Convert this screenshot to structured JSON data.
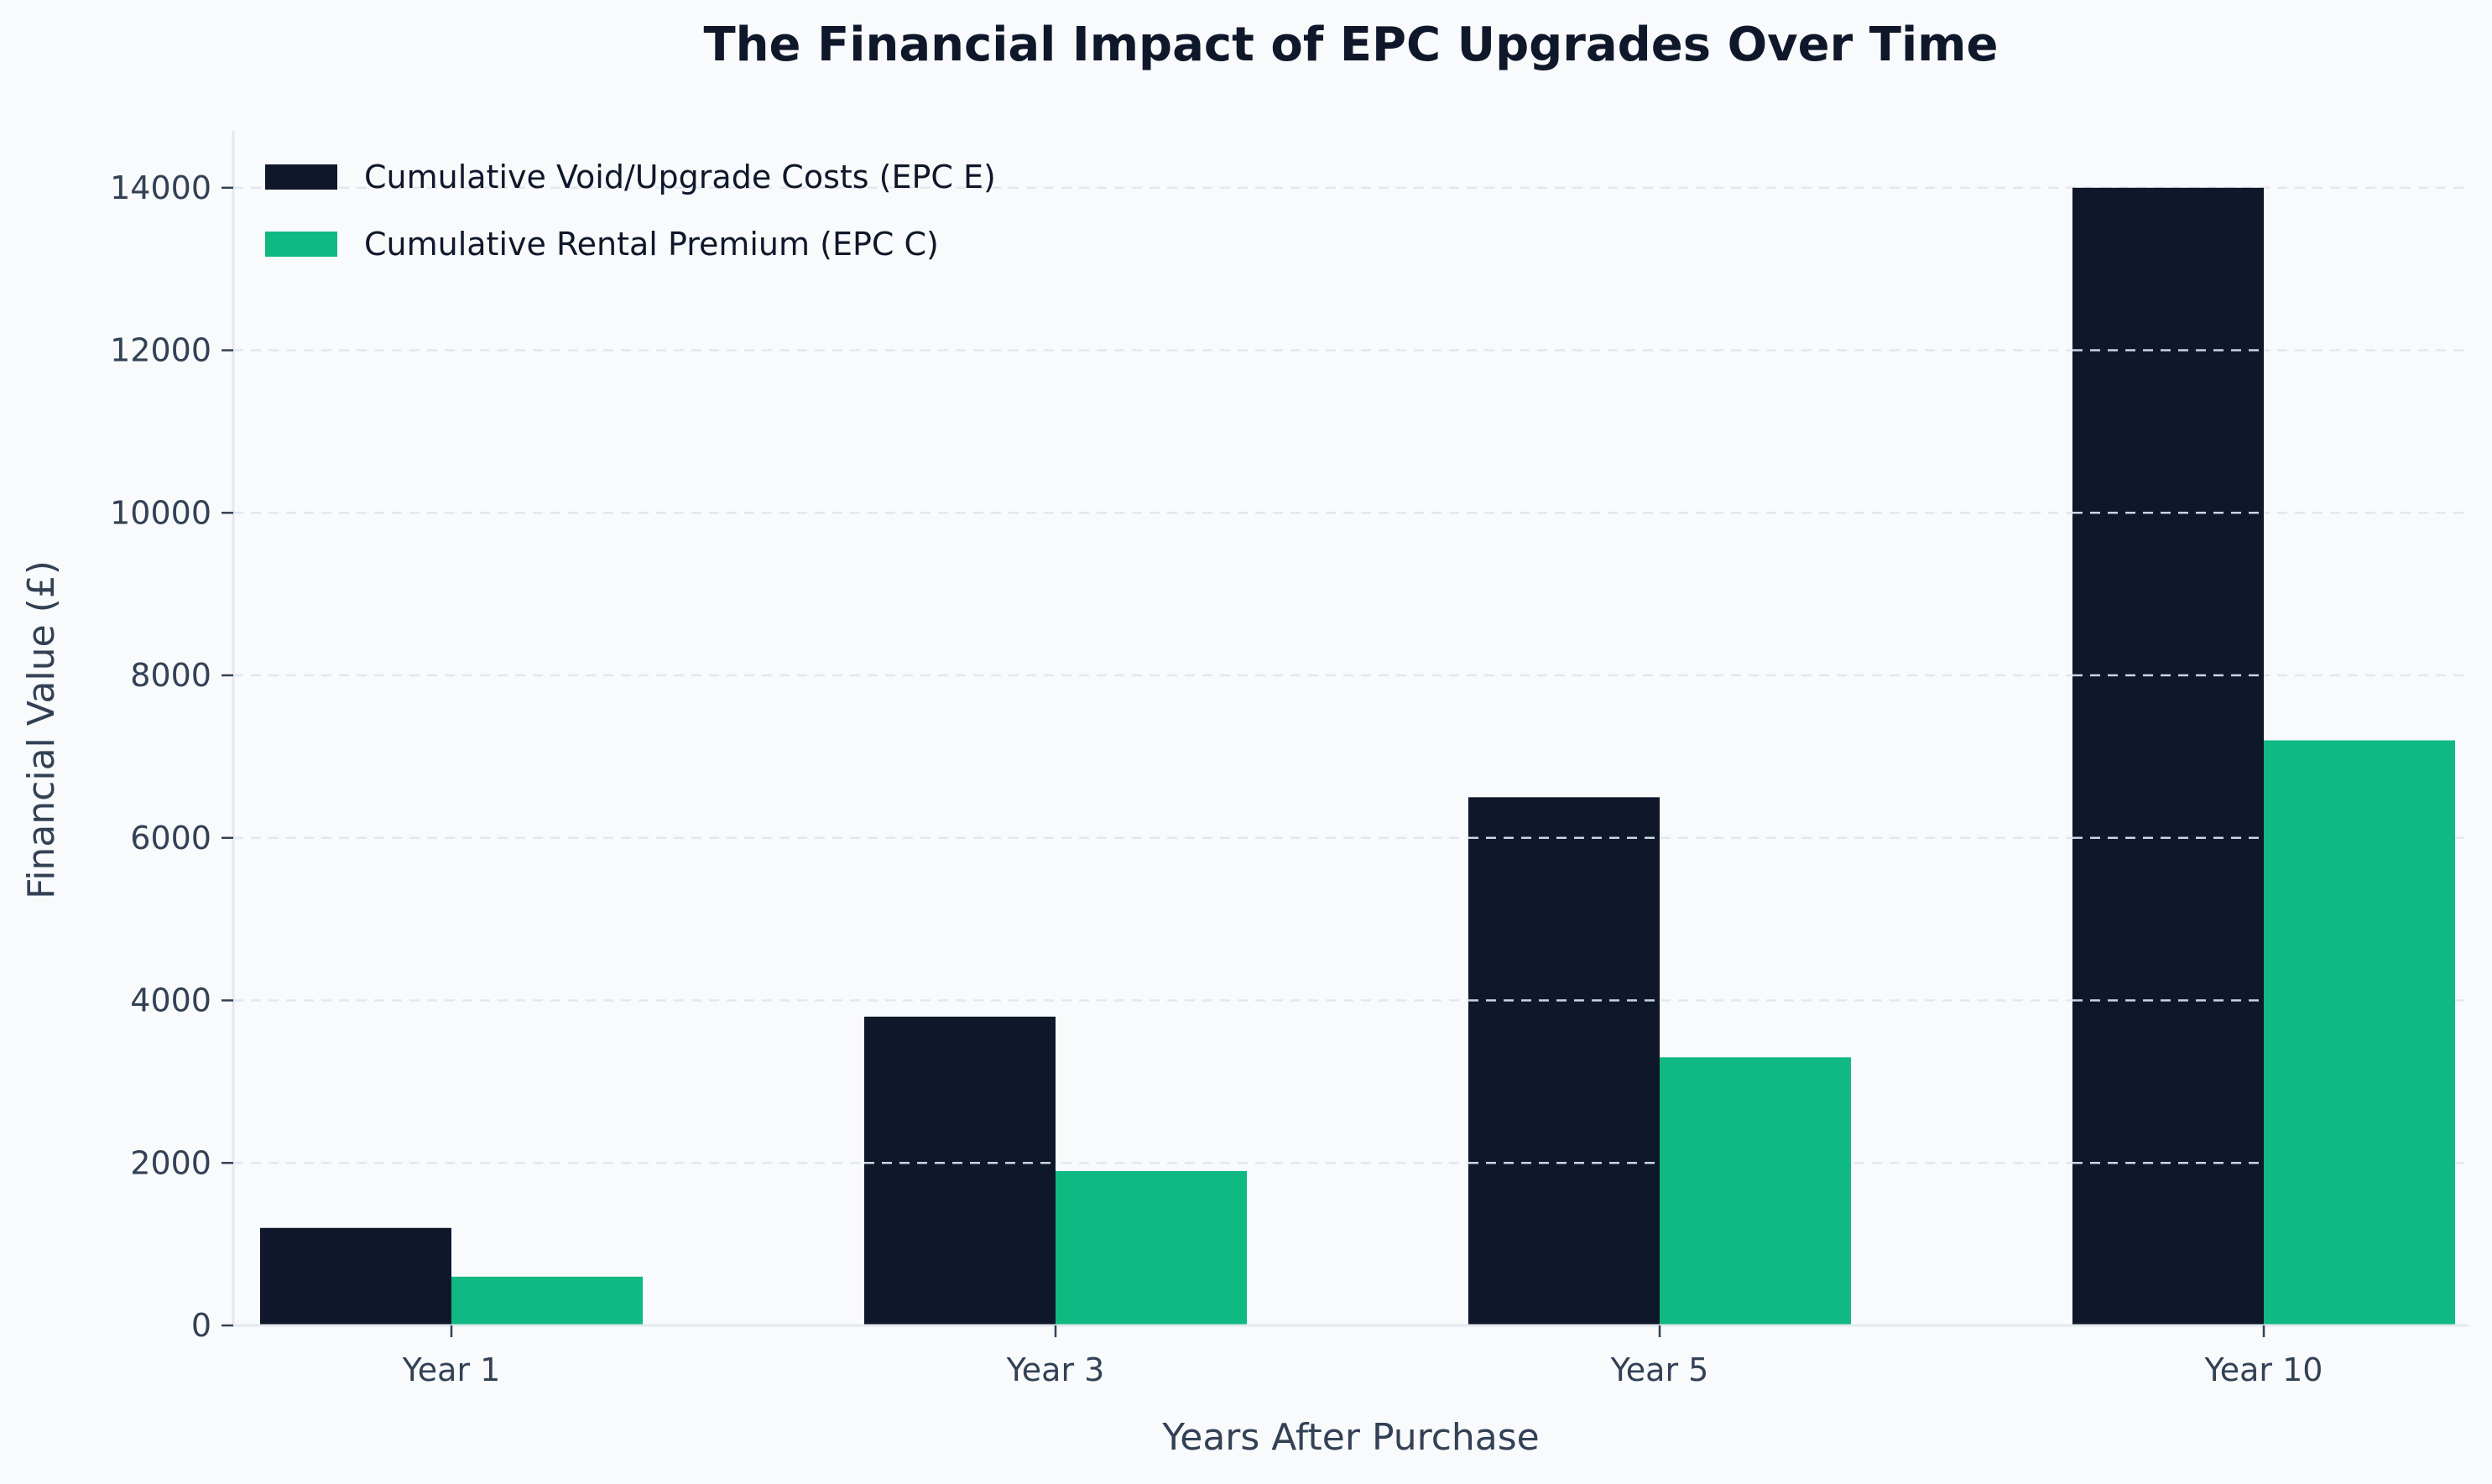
{
  "colors": {
    "background": "#f8fafc",
    "series_void": "#0f172a",
    "series_premium": "#10b981",
    "grid": "#e2e8f0",
    "grid_on_bar": "#cbd5e1",
    "axis": "#e2e8f0",
    "text": "#334155",
    "title": "#0f172a"
  },
  "chart_data": {
    "type": "bar",
    "title": "The Financial Impact of EPC Upgrades Over Time",
    "xlabel": "Years After Purchase",
    "ylabel": "Financial Value (£)",
    "categories": [
      "Year 1",
      "Year 3",
      "Year 5",
      "Year 10"
    ],
    "series": [
      {
        "name": "Cumulative Void/Upgrade Costs (EPC E)",
        "values": [
          1200,
          3800,
          6500,
          14000
        ],
        "color": "#0f172a"
      },
      {
        "name": "Cumulative Rental Premium (EPC C)",
        "values": [
          600,
          1900,
          3300,
          7200
        ],
        "color": "#10b981"
      }
    ],
    "ylim": [
      0,
      14700
    ],
    "yticks": [
      0,
      2000,
      4000,
      6000,
      8000,
      10000,
      12000,
      14000
    ],
    "grid": true,
    "grid_style": "dashed horizontal",
    "legend_position": "top-left"
  }
}
